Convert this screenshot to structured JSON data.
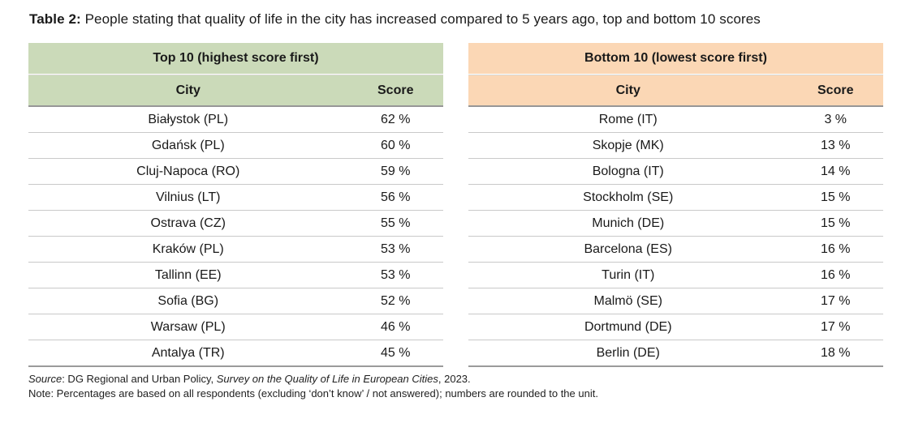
{
  "page": {
    "title_prefix": "Table 2:",
    "title_text": " People stating that quality of life in the city has increased compared to 5 years ago, top and bottom 10 scores"
  },
  "colors": {
    "top_accent": "#cbdab9",
    "bottom_accent": "#fbd7b5",
    "header_rule": "#979797",
    "row_rule": "#c9c9c9"
  },
  "tables": [
    {
      "name": "top10",
      "caption": "Top 10 (highest score first)",
      "columns": {
        "city": "City",
        "score": "Score"
      },
      "rows": [
        [
          "Białystok (PL)",
          "62 %"
        ],
        [
          "Gdańsk (PL)",
          "60 %"
        ],
        [
          "Cluj-Napoca (RO)",
          "59 %"
        ],
        [
          "Vilnius (LT)",
          "56 %"
        ],
        [
          "Ostrava (CZ)",
          "55 %"
        ],
        [
          "Kraków (PL)",
          "53 %"
        ],
        [
          "Tallinn (EE)",
          "53 %"
        ],
        [
          "Sofia (BG)",
          "52 %"
        ],
        [
          "Warsaw (PL)",
          "46 %"
        ],
        [
          "Antalya (TR)",
          "45 %"
        ]
      ]
    },
    {
      "name": "bottom10",
      "caption": "Bottom 10 (lowest score first)",
      "columns": {
        "city": "City",
        "score": "Score"
      },
      "rows": [
        [
          "Rome (IT)",
          "3 %"
        ],
        [
          "Skopje (MK)",
          "13 %"
        ],
        [
          "Bologna (IT)",
          "14 %"
        ],
        [
          "Stockholm (SE)",
          "15 %"
        ],
        [
          "Munich (DE)",
          "15 %"
        ],
        [
          "Barcelona (ES)",
          "16 %"
        ],
        [
          "Turin (IT)",
          "16 %"
        ],
        [
          "Malmö (SE)",
          "17 %"
        ],
        [
          "Dortmund (DE)",
          "17 %"
        ],
        [
          "Berlin (DE)",
          "18 %"
        ]
      ]
    }
  ],
  "footer": {
    "source_label": "Source",
    "source_mid": ": DG Regional and Urban Policy, ",
    "source_work": "Survey on the Quality of Life in European Cities",
    "source_end": ", 2023.",
    "note": "Note: Percentages are based on all respondents (excluding ‘don’t know’ / not answered); numbers are rounded to the unit."
  },
  "chart_data": [
    {
      "type": "table",
      "title": "Top 10 (highest score first)",
      "columns": [
        "City",
        "Score"
      ],
      "unit": "%",
      "cities": [
        "Białystok (PL)",
        "Gdańsk (PL)",
        "Cluj-Napoca (RO)",
        "Vilnius (LT)",
        "Ostrava (CZ)",
        "Kraków (PL)",
        "Tallinn (EE)",
        "Sofia (BG)",
        "Warsaw (PL)",
        "Antalya (TR)"
      ],
      "values": [
        62,
        60,
        59,
        56,
        55,
        53,
        53,
        52,
        46,
        45
      ]
    },
    {
      "type": "table",
      "title": "Bottom 10 (lowest score first)",
      "columns": [
        "City",
        "Score"
      ],
      "unit": "%",
      "cities": [
        "Rome (IT)",
        "Skopje (MK)",
        "Bologna (IT)",
        "Stockholm (SE)",
        "Munich (DE)",
        "Barcelona (ES)",
        "Turin (IT)",
        "Malmö (SE)",
        "Dortmund (DE)",
        "Berlin (DE)"
      ],
      "values": [
        3,
        13,
        14,
        15,
        15,
        16,
        16,
        17,
        17,
        18
      ]
    }
  ]
}
